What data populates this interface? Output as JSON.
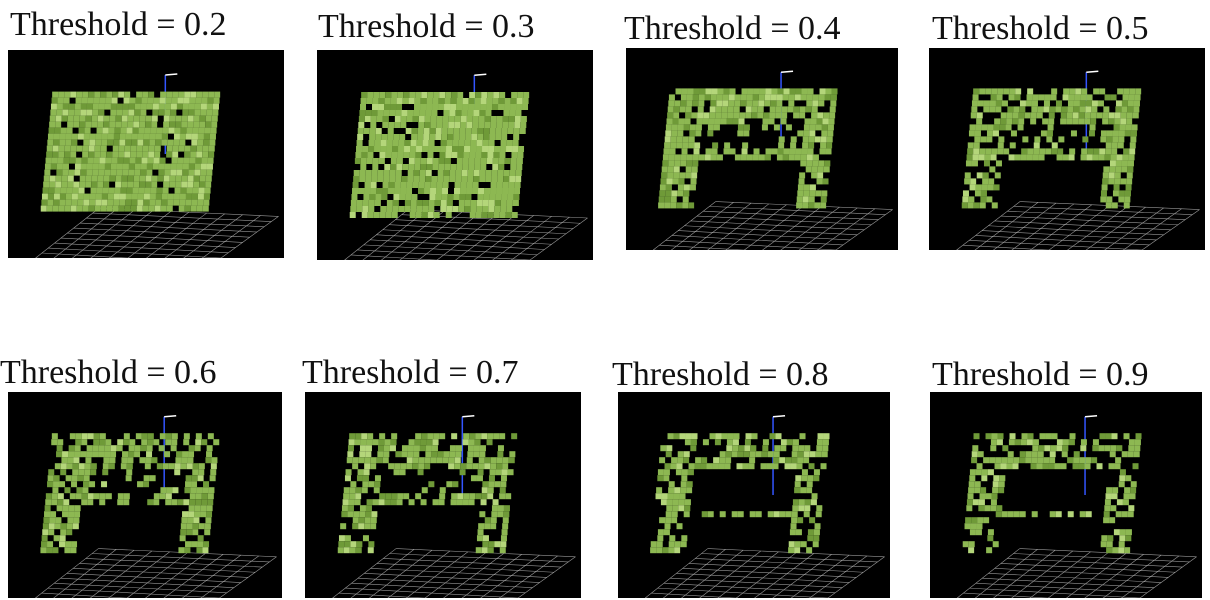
{
  "colors": {
    "background": "#ffffff",
    "viewport": "#000000",
    "voxel": "#8db852",
    "voxel_dark": "#6f9a38",
    "voxel_light": "#b4d67a",
    "grid": "#bfbfbf",
    "axis_blue": "#3355ff",
    "axis_white": "#ffffff"
  },
  "panels": [
    {
      "caption": "Threshold = 0.2",
      "threshold": 0.2,
      "shape": "solid"
    },
    {
      "caption": "Threshold = 0.3",
      "threshold": 0.3,
      "shape": "solid"
    },
    {
      "caption": "Threshold = 0.4",
      "threshold": 0.4,
      "shape": "table"
    },
    {
      "caption": "Threshold = 0.5",
      "threshold": 0.5,
      "shape": "table"
    },
    {
      "caption": "Threshold = 0.6",
      "threshold": 0.6,
      "shape": "table"
    },
    {
      "caption": "Threshold = 0.7",
      "threshold": 0.7,
      "shape": "table"
    },
    {
      "caption": "Threshold = 0.8",
      "threshold": 0.8,
      "shape": "frame"
    },
    {
      "caption": "Threshold = 0.9",
      "threshold": 0.9,
      "shape": "frame"
    }
  ]
}
